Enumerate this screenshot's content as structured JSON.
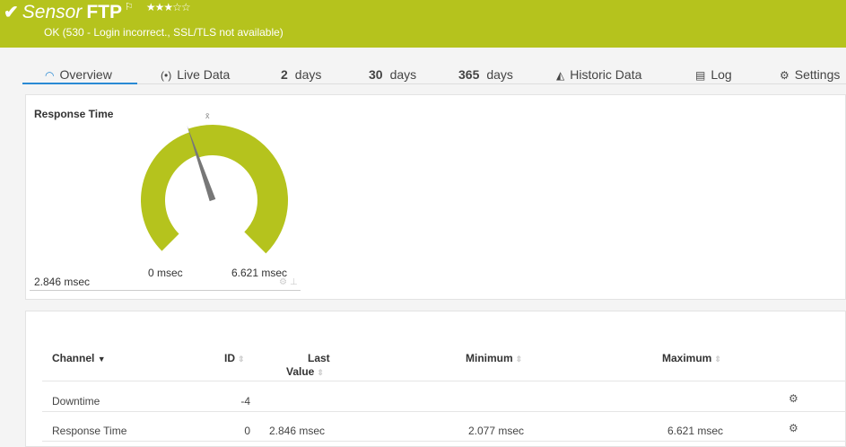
{
  "header": {
    "check_icon": "checkmark",
    "sensor_word": "Sensor",
    "sensor_name": "FTP",
    "flag_icon": "flag",
    "stars": "★★★☆☆",
    "priority": 3,
    "status_text": "OK (530 - Login incorrect., SSL/TLS not available)",
    "color": "#b5c31d"
  },
  "tabs": [
    {
      "icon": "gauge-icon",
      "label": "Overview",
      "active": true
    },
    {
      "icon": "live-icon",
      "label": "Live Data"
    },
    {
      "num": "2",
      "label": "days"
    },
    {
      "num": "30",
      "label": "days"
    },
    {
      "num": "365",
      "label": "days"
    },
    {
      "icon": "chart-icon",
      "label": "Historic Data"
    },
    {
      "icon": "log-icon",
      "label": "Log"
    },
    {
      "icon": "gear-icon",
      "label": "Settings"
    }
  ],
  "gauge": {
    "title": "Response Time",
    "value_text": "2.846 msec",
    "min_label": "0 msec",
    "max_label": "6.621 msec",
    "mean_marker": "x̄",
    "min": 0,
    "max": 6.621,
    "value": 2.846,
    "color": "#b5c31d"
  },
  "table": {
    "headers": {
      "channel": "Channel",
      "id": "ID",
      "last_1": "Last",
      "last_2": "Value",
      "minimum": "Minimum",
      "maximum": "Maximum"
    },
    "rows": [
      {
        "channel": "Downtime",
        "id": "-4",
        "last": "",
        "minimum": "",
        "maximum": ""
      },
      {
        "channel": "Response Time",
        "id": "0",
        "last": "2.846 msec",
        "minimum": "2.077 msec",
        "maximum": "6.621 msec"
      }
    ]
  }
}
